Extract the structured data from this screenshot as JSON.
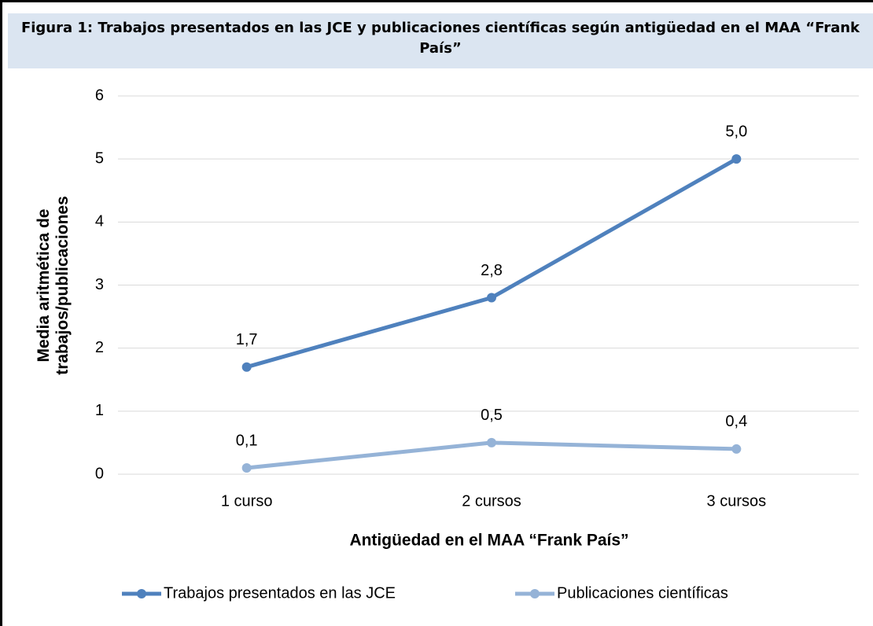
{
  "chart_data": {
    "type": "line",
    "title": "Figura 1: Trabajos presentados en las JCE y publicaciones científicas según antigüedad en el MAA “Frank País”",
    "x_label": "Antigüedad en el MAA “Frank País”",
    "y_label": "Media aritmética de trabajos/publicaciones",
    "categories": [
      "1 curso",
      "2 cursos",
      "3 cursos"
    ],
    "series": [
      {
        "name": "Trabajos presentados en las JCE",
        "color": "#4f81bd",
        "values": [
          1.7,
          2.8,
          5.0
        ],
        "value_labels": [
          "1,7",
          "2,8",
          "5,0"
        ]
      },
      {
        "name": "Publicaciones científicas",
        "color": "#95b3d7",
        "values": [
          0.1,
          0.5,
          0.4
        ],
        "value_labels": [
          "0,1",
          "0,5",
          "0,4"
        ]
      }
    ],
    "ylim": [
      0,
      6
    ],
    "yticks": [
      0,
      1,
      2,
      3,
      4,
      5,
      6
    ],
    "grid": true,
    "legend": "bottom"
  }
}
